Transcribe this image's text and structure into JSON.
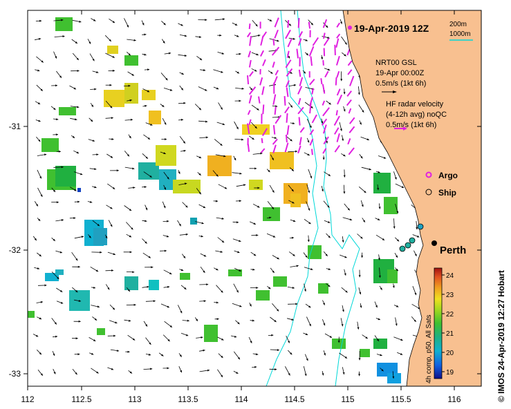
{
  "map": {
    "datetime_title": "19-Apr-2019 12Z",
    "x_ticks": [
      "112",
      "112.5",
      "113",
      "113.5",
      "114",
      "114.5",
      "115",
      "115.5",
      "116"
    ],
    "y_ticks": [
      "-31",
      "-32",
      "-33"
    ],
    "credit": "© IMOS 24-Apr-2019 12:27 Hobart",
    "city": "Perth"
  },
  "isobath_legend": {
    "label_200m": "200m",
    "label_1000m": "1000m",
    "color_1000m": "#00d8d8"
  },
  "current_legend": {
    "model_name": "NRT00 GSL",
    "model_date": "19-Apr 00:00Z",
    "model_scale": "0.5m/s (1kt 6h)",
    "radar_line1": "HF radar velocity",
    "radar_line2": "(4-12h avg) noQC",
    "radar_scale": "0.5m/s (1kt 6h)",
    "radar_color": "#e020e0"
  },
  "platform_legend": {
    "argo": "Argo",
    "ship": "Ship"
  },
  "colorbar": {
    "ticks": [
      "24",
      "23",
      "22",
      "21",
      "20",
      "19"
    ],
    "label": "4h comp, p50, All Sats"
  },
  "colors": {
    "land": "#f8c090",
    "isobath": "#00d8d8",
    "radar": "#e020e0"
  }
}
